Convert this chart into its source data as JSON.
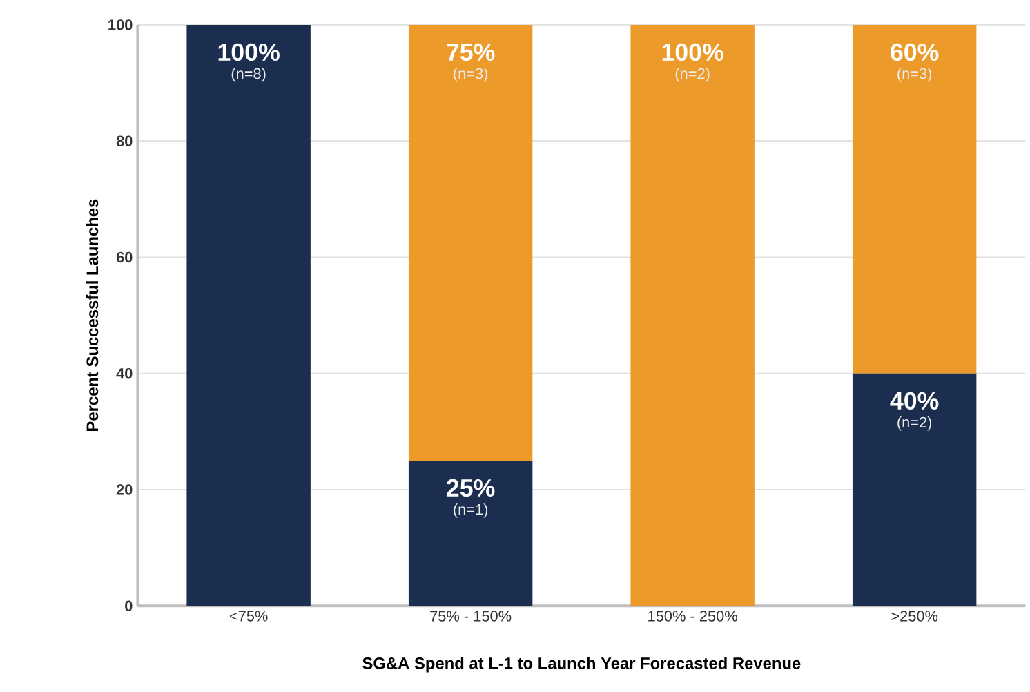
{
  "chart_data": {
    "type": "bar",
    "stacked": true,
    "xlabel": "SG&A Spend at L-1 to Launch Year Forecasted Revenue",
    "ylabel": "Percent Successful Launches",
    "categories": [
      "<75%",
      "75% - 150%",
      "150% - 250%",
      ">250%"
    ],
    "series": [
      {
        "color": "#1c2e4f",
        "values": [
          100,
          25,
          0,
          40
        ],
        "value_labels": [
          "100%",
          "25%",
          null,
          "40%"
        ]
      },
      {
        "color": "#ec9a29",
        "values": [
          0,
          75,
          100,
          60
        ],
        "value_labels": [
          null,
          "75%",
          "100%",
          "60%"
        ]
      }
    ],
    "ylim": [
      0,
      100
    ],
    "yticks": [
      0,
      20,
      40,
      60,
      80,
      100
    ],
    "grid": "y",
    "annotations": [
      "(n=8)",
      "(n=1)",
      "(n=2)",
      "(n=3)",
      "(n=2)",
      "(n=3)"
    ]
  }
}
